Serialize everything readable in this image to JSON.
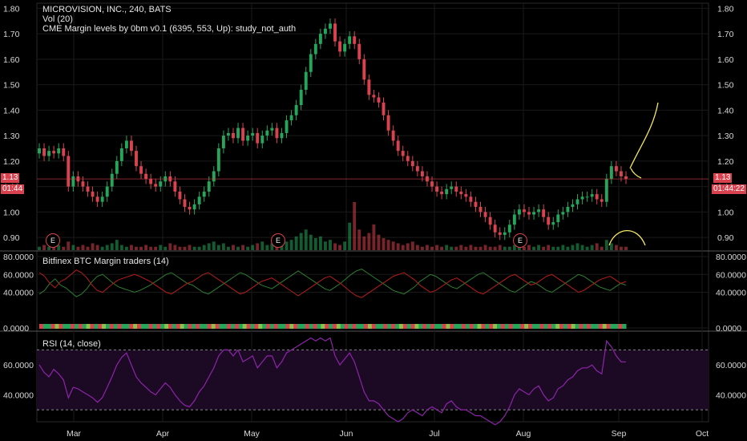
{
  "theme": {
    "bg": "#000000",
    "up": "#26a65b",
    "down": "#d9434f",
    "grid": "#1a1a1a",
    "rsi": "#8e24aa",
    "annotation": "#f5e663"
  },
  "legend": {
    "main": "MICROVISION, INC., 240, BATS",
    "vol": "Vol (20)",
    "cme": "CME Margin levels by 0bm v0.1 (6395, 553, Up): study_not_auth",
    "bitfinex": "Bitfinex BTC Margin traders (14)",
    "rsi": "RSI (14, close)"
  },
  "price_tag": {
    "value": "1.13",
    "countdown_left": "01:44",
    "countdown_right": "01:44:22"
  },
  "earnings_markers": [
    "E",
    "E",
    "E"
  ],
  "chart_data": [
    {
      "type": "candlestick",
      "title": "MICROVISION, INC., 240, BATS",
      "y_ticks": [
        "1.80",
        "1.70",
        "1.60",
        "1.50",
        "1.40",
        "1.30",
        "1.20",
        "1.10",
        "1.00",
        "0.90"
      ],
      "ylim": [
        0.85,
        1.82
      ],
      "x_ticks": [
        "Mar",
        "Apr",
        "May",
        "Jun",
        "Jul",
        "Aug",
        "Sep",
        "Oct"
      ],
      "last_price": 1.13,
      "closes": [
        1.25,
        1.22,
        1.24,
        1.23,
        1.25,
        1.22,
        1.1,
        1.14,
        1.12,
        1.1,
        1.08,
        1.06,
        1.04,
        1.06,
        1.1,
        1.15,
        1.2,
        1.25,
        1.28,
        1.24,
        1.18,
        1.15,
        1.13,
        1.11,
        1.1,
        1.12,
        1.14,
        1.12,
        1.08,
        1.05,
        1.02,
        1.01,
        1.03,
        1.06,
        1.08,
        1.12,
        1.16,
        1.25,
        1.3,
        1.31,
        1.29,
        1.33,
        1.28,
        1.3,
        1.31,
        1.27,
        1.3,
        1.32,
        1.33,
        1.29,
        1.31,
        1.36,
        1.38,
        1.42,
        1.48,
        1.55,
        1.62,
        1.66,
        1.7,
        1.72,
        1.74,
        1.67,
        1.63,
        1.66,
        1.69,
        1.66,
        1.6,
        1.52,
        1.46,
        1.45,
        1.43,
        1.38,
        1.32,
        1.28,
        1.24,
        1.22,
        1.2,
        1.18,
        1.16,
        1.14,
        1.12,
        1.1,
        1.08,
        1.07,
        1.09,
        1.1,
        1.08,
        1.07,
        1.06,
        1.04,
        1.02,
        1.0,
        0.98,
        0.95,
        0.92,
        0.91,
        0.92,
        0.95,
        0.99,
        1.01,
        1.0,
        0.99,
        1.0,
        1.01,
        0.98,
        0.95,
        0.96,
        0.99,
        1.0,
        1.02,
        1.03,
        1.05,
        1.06,
        1.06,
        1.07,
        1.05,
        1.04,
        1.13,
        1.18,
        1.16,
        1.14,
        1.13
      ],
      "volume": [
        2,
        3,
        2,
        4,
        3,
        2,
        5,
        3,
        2,
        3,
        2,
        4,
        3,
        2,
        3,
        4,
        6,
        3,
        2,
        3,
        2,
        2,
        3,
        2,
        2,
        3,
        2,
        4,
        3,
        2,
        2,
        3,
        2,
        2,
        3,
        4,
        5,
        3,
        4,
        2,
        3,
        2,
        3,
        2,
        3,
        4,
        5,
        3,
        4,
        2,
        3,
        5,
        6,
        8,
        10,
        12,
        9,
        7,
        8,
        5,
        6,
        4,
        3,
        5,
        16,
        28,
        12,
        8,
        10,
        15,
        9,
        7,
        6,
        5,
        4,
        3,
        4,
        5,
        3,
        2,
        3,
        2,
        3,
        2,
        3,
        2,
        2,
        3,
        2,
        3,
        2,
        2,
        3,
        2,
        2,
        3,
        2,
        2,
        3,
        2,
        2,
        3,
        2,
        3,
        2,
        3,
        2,
        2,
        3,
        2,
        3,
        4,
        3,
        2,
        3,
        4,
        2,
        6,
        4,
        3,
        2,
        2
      ]
    },
    {
      "type": "line",
      "title": "Bitfinex BTC Margin traders (14)",
      "y_ticks": [
        "80.0000",
        "60.0000",
        "40.0000",
        "0.0000"
      ],
      "ylim": [
        0,
        80
      ],
      "series": [
        {
          "color": "#2e7d32",
          "values": [
            38,
            42,
            50,
            55,
            48,
            45,
            40,
            35,
            38,
            44,
            52,
            58,
            60,
            55,
            50,
            46,
            44,
            42,
            40,
            42,
            45,
            48,
            52,
            56,
            60,
            62,
            58,
            54,
            50,
            48,
            44,
            40,
            38,
            42,
            46,
            50,
            54,
            58,
            62,
            60,
            56,
            52,
            48,
            46,
            44,
            48,
            52,
            56,
            60,
            64,
            60,
            56,
            52,
            48,
            44,
            42,
            46,
            50,
            55,
            60,
            64,
            66,
            62,
            58,
            54,
            50,
            46,
            42,
            40,
            38,
            42,
            46,
            52,
            56,
            60,
            58,
            54,
            50,
            46,
            44,
            48,
            52,
            56,
            60,
            62,
            58,
            54,
            50,
            46,
            42,
            40,
            44,
            48,
            52,
            50,
            46,
            42,
            40,
            44,
            48,
            52,
            56,
            60,
            58,
            54,
            50,
            46,
            44,
            42,
            46,
            50,
            48
          ]
        },
        {
          "color": "#b71c1c",
          "values": [
            62,
            58,
            50,
            45,
            52,
            55,
            60,
            65,
            62,
            56,
            48,
            42,
            40,
            45,
            50,
            54,
            56,
            58,
            60,
            58,
            55,
            52,
            48,
            44,
            40,
            38,
            42,
            46,
            50,
            52,
            56,
            60,
            62,
            58,
            54,
            50,
            46,
            42,
            38,
            40,
            44,
            48,
            52,
            54,
            56,
            52,
            48,
            44,
            40,
            36,
            40,
            44,
            48,
            52,
            56,
            58,
            54,
            50,
            45,
            40,
            36,
            34,
            38,
            42,
            46,
            50,
            54,
            58,
            60,
            62,
            58,
            54,
            48,
            44,
            40,
            42,
            46,
            50,
            54,
            56,
            52,
            48,
            44,
            40,
            38,
            42,
            46,
            50,
            54,
            58,
            60,
            56,
            52,
            48,
            50,
            54,
            58,
            60,
            56,
            52,
            48,
            44,
            40,
            42,
            46,
            50,
            54,
            56,
            58,
            54,
            50,
            52
          ]
        }
      ]
    },
    {
      "type": "line",
      "title": "RSI (14, close)",
      "y_ticks": [
        "60.0000",
        "40.0000"
      ],
      "ylim": [
        22,
        82
      ],
      "band": [
        30,
        70
      ],
      "values": [
        60,
        55,
        52,
        57,
        54,
        50,
        38,
        45,
        44,
        42,
        40,
        38,
        35,
        38,
        45,
        52,
        60,
        65,
        68,
        60,
        52,
        48,
        45,
        42,
        40,
        44,
        48,
        45,
        40,
        36,
        33,
        32,
        36,
        42,
        46,
        52,
        58,
        66,
        70,
        70,
        66,
        70,
        62,
        64,
        66,
        58,
        62,
        66,
        66,
        58,
        62,
        68,
        70,
        72,
        74,
        76,
        78,
        76,
        78,
        76,
        78,
        66,
        60,
        64,
        68,
        62,
        52,
        42,
        36,
        36,
        34,
        30,
        26,
        24,
        22,
        24,
        28,
        30,
        28,
        26,
        30,
        32,
        30,
        28,
        34,
        36,
        32,
        30,
        30,
        28,
        26,
        26,
        24,
        22,
        20,
        22,
        26,
        32,
        40,
        44,
        42,
        40,
        44,
        46,
        40,
        36,
        38,
        44,
        46,
        50,
        52,
        56,
        58,
        58,
        60,
        56,
        54,
        76,
        72,
        66,
        62,
        62
      ]
    }
  ]
}
